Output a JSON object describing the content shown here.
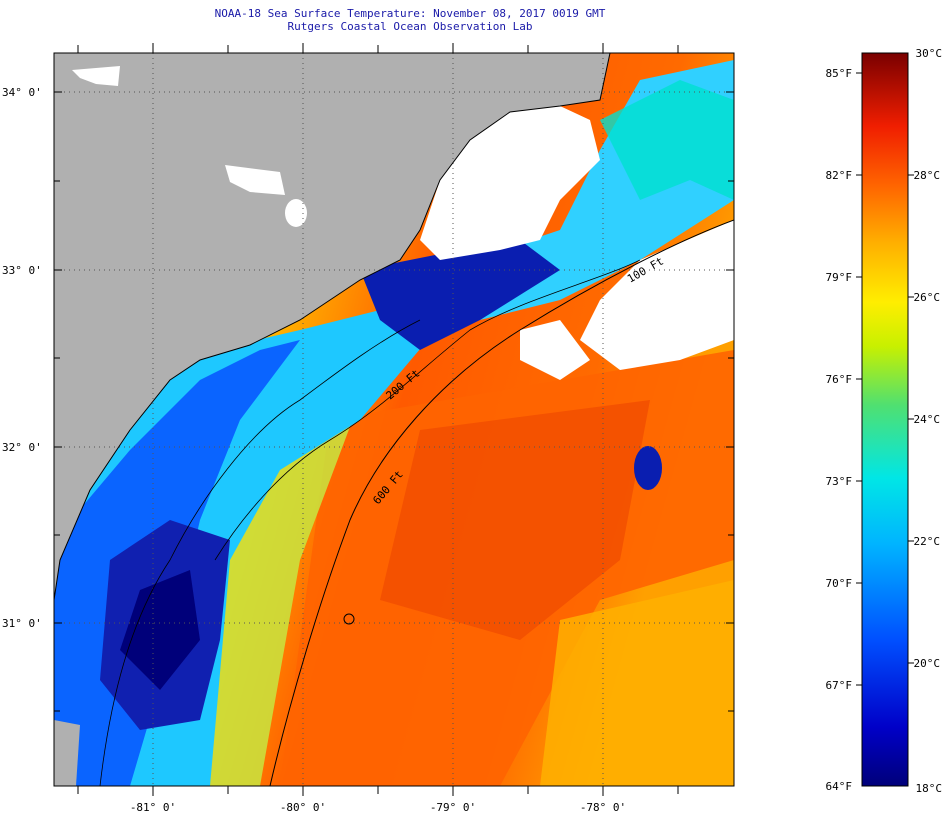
{
  "header": {
    "title": "NOAA-18 Sea Surface Temperature:  November 08, 2017 0019 GMT",
    "subtitle": "Rutgers Coastal Ocean Observation Lab"
  },
  "map": {
    "lat_labels": [
      "34° 0'",
      "33° 0'",
      "32° 0'",
      "31° 0'"
    ],
    "lon_labels": [
      "-81° 0'",
      "-80° 0'",
      "-79° 0'",
      "-78° 0'"
    ],
    "isobath_labels": [
      "100 Ft",
      "200 Ft",
      "600 Ft"
    ],
    "colors": {
      "land": "#b0b0b0",
      "cloud": "#ffffff",
      "cold": "#00007a",
      "warm": "#ff5a00"
    }
  },
  "colorbar": {
    "f_labels": [
      "85°F",
      "82°F",
      "79°F",
      "76°F",
      "73°F",
      "70°F",
      "67°F",
      "64°F"
    ],
    "c_labels": [
      "30°C",
      "28°C",
      "26°C",
      "24°C",
      "22°C",
      "20°C",
      "18°C"
    ]
  }
}
